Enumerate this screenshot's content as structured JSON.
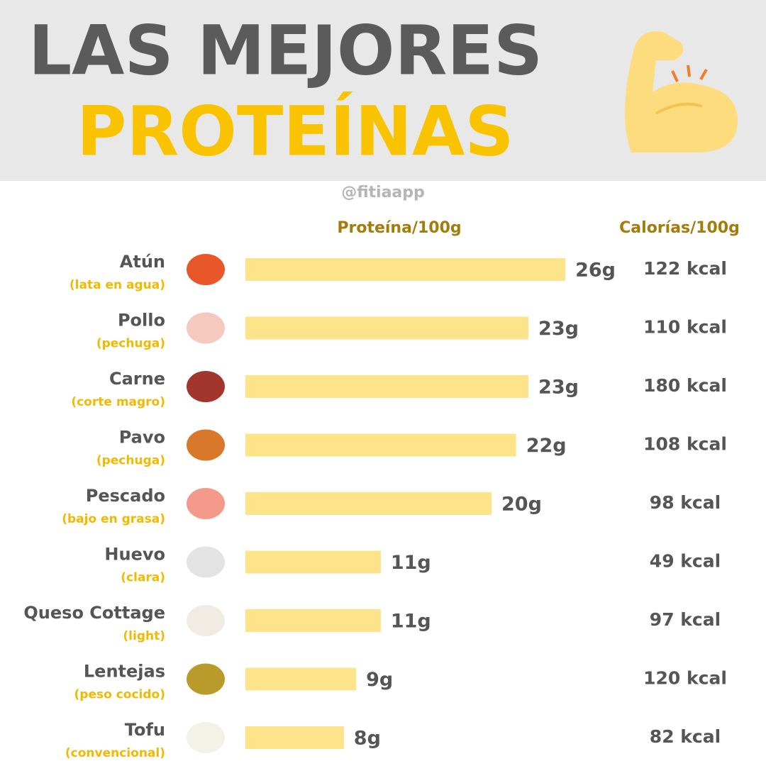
{
  "chart_data": {
    "type": "hbar",
    "title_line1": "LAS MEJORES",
    "title_line2": "PROTEÍNAS",
    "handle": "@fitiaapp",
    "value_header": "Proteína/100g",
    "calories_header": "Calorías/100g",
    "categories": [
      "Atún",
      "Pollo",
      "Carne",
      "Pavo",
      "Pescado",
      "Huevo",
      "Queso Cottage",
      "Lentejas",
      "Tofu"
    ],
    "subtitles": [
      "(lata en agua)",
      "(pechuga)",
      "(corte magro)",
      "(pechuga)",
      "(bajo en grasa)",
      "(clara)",
      "(light)",
      "(peso cocido)",
      "(convencional)"
    ],
    "values": [
      26,
      23,
      23,
      22,
      20,
      11,
      11,
      9,
      8
    ],
    "value_labels": [
      "26g",
      "23g",
      "23g",
      "22g",
      "20g",
      "11g",
      "11g",
      "9g",
      "8g"
    ],
    "calories": [
      "122 kcal",
      "110 kcal",
      "180 kcal",
      "108 kcal",
      "98 kcal",
      "49 kcal",
      "97 kcal",
      "120 kcal",
      "82 kcal"
    ],
    "color": "#fde38a"
  }
}
